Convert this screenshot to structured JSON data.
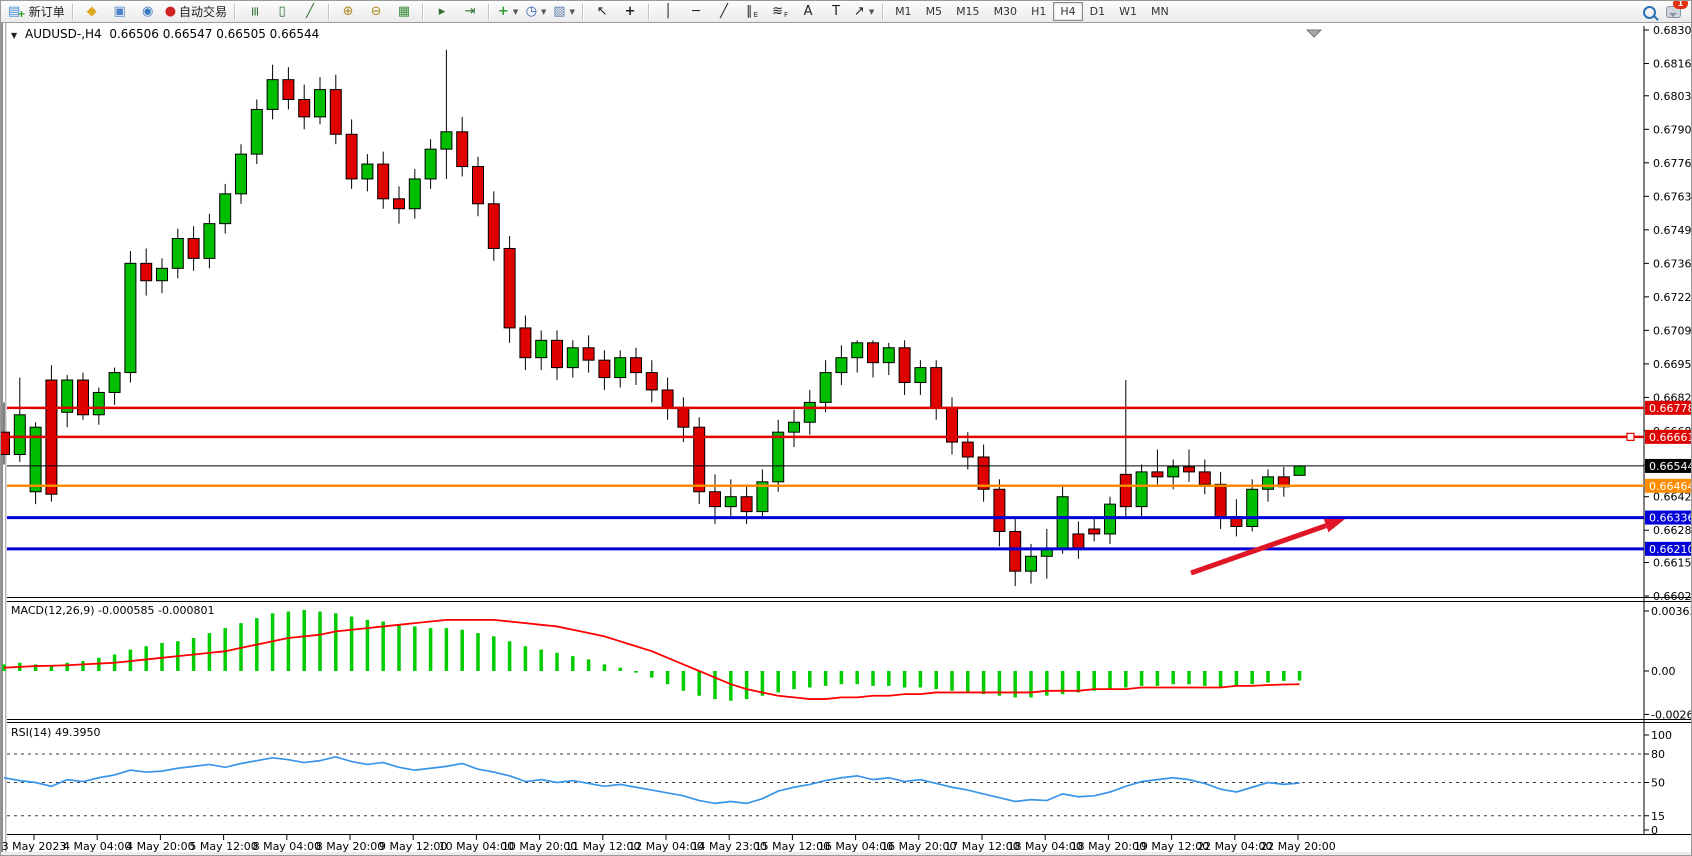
{
  "toolbar": {
    "groups": [
      [
        {
          "name": "new-order-button",
          "glyph": "▤",
          "color": "#3f8edb",
          "label": "新订单",
          "plus": true
        }
      ],
      [
        {
          "name": "metaeditor-button",
          "glyph": "◆",
          "color": "#e0a81f"
        },
        {
          "name": "community-button",
          "glyph": "▣",
          "color": "#4a7fc9"
        },
        {
          "name": "news-button",
          "glyph": "◉",
          "color": "#3a78c2"
        },
        {
          "name": "auto-trading-button",
          "glyph": "●",
          "color": "#cc2222",
          "label": "自动交易"
        }
      ],
      [
        {
          "name": "bar-chart-button",
          "glyph": "≡",
          "color": "#2f6f2f",
          "rot": true
        },
        {
          "name": "candlestick-chart-button",
          "glyph": "▯",
          "color": "#2f6f2f"
        },
        {
          "name": "line-chart-button",
          "glyph": "╱",
          "color": "#2f6f2f"
        }
      ],
      [
        {
          "name": "zoom-in-button",
          "glyph": "⊕",
          "color": "#b08a20"
        },
        {
          "name": "zoom-out-button",
          "glyph": "⊖",
          "color": "#b08a20"
        },
        {
          "name": "tile-windows-button",
          "glyph": "▦",
          "color": "#3a8f3a"
        }
      ],
      [
        {
          "name": "auto-scroll-button",
          "glyph": "▸",
          "color": "#2f6f2f"
        },
        {
          "name": "chart-shift-button",
          "glyph": "⇥",
          "color": "#2f6f2f"
        }
      ],
      [
        {
          "name": "add-indicator-button",
          "glyph": "+",
          "color": "#2f9e2f",
          "caret": true
        },
        {
          "name": "periods-button",
          "glyph": "◷",
          "color": "#2a5fae",
          "caret": true
        },
        {
          "name": "template-button",
          "glyph": "▨",
          "color": "#5a7fae",
          "caret": true
        }
      ],
      [
        {
          "name": "cursor-button",
          "glyph": "↖",
          "color": "#222"
        },
        {
          "name": "crosshair-button",
          "glyph": "+",
          "color": "#222"
        }
      ],
      [
        {
          "name": "vertical-line-button",
          "glyph": "│",
          "color": "#222"
        },
        {
          "name": "horizontal-line-button",
          "glyph": "─",
          "color": "#222"
        },
        {
          "name": "trendline-button",
          "glyph": "╱",
          "color": "#222"
        },
        {
          "name": "equidistant-channel-button",
          "glyph": "∥",
          "color": "#222",
          "sub": "E"
        },
        {
          "name": "fibonacci-button",
          "glyph": "≋",
          "color": "#222",
          "sub": "F"
        },
        {
          "name": "text-button",
          "glyph": "A",
          "color": "#222"
        },
        {
          "name": "text-label-button",
          "glyph": "T",
          "color": "#222"
        },
        {
          "name": "arrows-tool-button",
          "glyph": "↗",
          "color": "#222",
          "caret": true
        }
      ]
    ],
    "timeframes": {
      "options": [
        "M1",
        "M5",
        "M15",
        "M30",
        "H1",
        "H4",
        "D1",
        "W1",
        "MN"
      ],
      "active": "H4"
    },
    "right_icons": [
      {
        "name": "search-icon"
      },
      {
        "name": "chat-icon",
        "badge": "1"
      }
    ]
  },
  "chart": {
    "symbol_title": "AUDUSD-,H4",
    "ohlc": {
      "open": "0.66506",
      "high": "0.66547",
      "low": "0.66505",
      "close": "0.66544"
    },
    "price_axis": {
      "ticks": [
        "0.68300",
        "0.68165",
        "0.68035",
        "0.67900",
        "0.67765",
        "0.67630",
        "0.67495",
        "0.67360",
        "0.67225",
        "0.67090",
        "0.66955",
        "0.66820",
        "0.66685",
        "0.66550",
        "0.66420",
        "0.66285",
        "0.66155",
        "0.66020"
      ]
    },
    "lines": [
      {
        "name": "resistance-line-1",
        "value": 0.66778,
        "badge": "0.66778",
        "color": "#de0202",
        "width": 2.5
      },
      {
        "name": "resistance-line-2",
        "value": 0.66661,
        "badge": "0.66661",
        "color": "#de0202",
        "width": 2.5,
        "handle": true
      },
      {
        "name": "bid-price-line",
        "value": 0.66544,
        "badge": "0.66544",
        "color": "#000000",
        "width": 1
      },
      {
        "name": "support-line-orange",
        "value": 0.66464,
        "badge": "0.66464",
        "color": "#ff8c00",
        "width": 2.5
      },
      {
        "name": "support-line-blue-1",
        "value": 0.66336,
        "badge": "0.66336",
        "color": "#0202d8",
        "width": 3
      },
      {
        "name": "support-line-blue-2",
        "value": 0.6621,
        "badge": "0.66210",
        "color": "#0202d8",
        "width": 3
      }
    ],
    "arrow": {
      "name": "trend-arrow",
      "color": "#e01525",
      "tail": [
        1190,
        572
      ],
      "tip": [
        1344,
        518
      ]
    },
    "colors": {
      "up": "#00be00",
      "down": "#df0000",
      "wick": "#000000",
      "macd_hist": "#00cc00",
      "macd_signal": "#ff0000",
      "rsi_line": "#3a95e8"
    }
  },
  "macd": {
    "name": "MACD(12,26,9)",
    "main_value": "-0.000585",
    "signal_value": "-0.000801",
    "scale_labels": [
      "0.003635",
      "0.00",
      "-0.00263"
    ],
    "scale_values": [
      0.003635,
      0,
      -0.00263
    ]
  },
  "rsi": {
    "name": "RSI(14)",
    "value": "49.3950",
    "scale_labels": [
      "100",
      "80",
      "50",
      "15",
      "0"
    ],
    "scale_values": [
      100,
      80,
      50,
      15,
      0
    ],
    "dashed_levels": [
      80,
      50,
      15
    ]
  },
  "time_axis": {
    "labels": [
      "3 May 2023",
      "4 May 04:00",
      "4 May 20:00",
      "5 May 12:00",
      "8 May 04:00",
      "8 May 20:00",
      "9 May 12:00",
      "10 May 04:00",
      "10 May 20:00",
      "11 May 12:00",
      "12 May 04:00",
      "14 May 23:00",
      "15 May 12:00",
      "16 May 04:00",
      "16 May 20:00",
      "17 May 12:00",
      "18 May 04:00",
      "18 May 20:00",
      "19 May 12:00",
      "22 May 04:00",
      "22 May 20:00"
    ]
  },
  "chart_data": {
    "type": "candlestick",
    "symbol": "AUDUSD-",
    "period": "H4",
    "ylim": [
      0.6602,
      0.683
    ],
    "candles": [
      [
        0.6668,
        0.668,
        0.6655,
        0.6659
      ],
      [
        0.6659,
        0.669,
        0.6656,
        0.6675
      ],
      [
        0.6644,
        0.6672,
        0.6639,
        0.667
      ],
      [
        0.6689,
        0.6695,
        0.664,
        0.6643
      ],
      [
        0.6676,
        0.6691,
        0.667,
        0.6689
      ],
      [
        0.6689,
        0.6692,
        0.6673,
        0.6675
      ],
      [
        0.6675,
        0.6686,
        0.6671,
        0.6684
      ],
      [
        0.6684,
        0.6694,
        0.6679,
        0.6692
      ],
      [
        0.6692,
        0.6741,
        0.6688,
        0.6736
      ],
      [
        0.6736,
        0.6742,
        0.6723,
        0.6729
      ],
      [
        0.6729,
        0.6738,
        0.6724,
        0.6734
      ],
      [
        0.6734,
        0.675,
        0.673,
        0.6746
      ],
      [
        0.6746,
        0.6751,
        0.6733,
        0.6738
      ],
      [
        0.6738,
        0.6756,
        0.6734,
        0.6752
      ],
      [
        0.6752,
        0.6768,
        0.6748,
        0.6764
      ],
      [
        0.6764,
        0.6784,
        0.676,
        0.678
      ],
      [
        0.678,
        0.6802,
        0.6776,
        0.6798
      ],
      [
        0.6798,
        0.6816,
        0.6794,
        0.681
      ],
      [
        0.681,
        0.6815,
        0.6798,
        0.6802
      ],
      [
        0.6802,
        0.6808,
        0.679,
        0.6795
      ],
      [
        0.6795,
        0.6811,
        0.6792,
        0.6806
      ],
      [
        0.6806,
        0.6812,
        0.6784,
        0.6788
      ],
      [
        0.6788,
        0.6794,
        0.6766,
        0.677
      ],
      [
        0.677,
        0.678,
        0.6765,
        0.6776
      ],
      [
        0.6776,
        0.6781,
        0.6758,
        0.6762
      ],
      [
        0.6762,
        0.6767,
        0.6752,
        0.6758
      ],
      [
        0.6758,
        0.6774,
        0.6754,
        0.677
      ],
      [
        0.677,
        0.6786,
        0.6766,
        0.6782
      ],
      [
        0.6782,
        0.6822,
        0.677,
        0.6789
      ],
      [
        0.6789,
        0.6795,
        0.6771,
        0.6775
      ],
      [
        0.6775,
        0.6779,
        0.6755,
        0.676
      ],
      [
        0.676,
        0.6765,
        0.6737,
        0.6742
      ],
      [
        0.6742,
        0.6747,
        0.6704,
        0.671
      ],
      [
        0.671,
        0.6715,
        0.6693,
        0.6698
      ],
      [
        0.6698,
        0.6709,
        0.6693,
        0.6705
      ],
      [
        0.6705,
        0.6709,
        0.6689,
        0.6694
      ],
      [
        0.6694,
        0.6705,
        0.669,
        0.6702
      ],
      [
        0.6702,
        0.6707,
        0.6692,
        0.6697
      ],
      [
        0.6697,
        0.6701,
        0.6685,
        0.669
      ],
      [
        0.669,
        0.6701,
        0.6686,
        0.6698
      ],
      [
        0.6698,
        0.6702,
        0.6687,
        0.6692
      ],
      [
        0.6692,
        0.6697,
        0.668,
        0.6685
      ],
      [
        0.6685,
        0.669,
        0.6673,
        0.6678
      ],
      [
        0.6678,
        0.6682,
        0.6664,
        0.667
      ],
      [
        0.667,
        0.6674,
        0.6639,
        0.6644
      ],
      [
        0.6644,
        0.6651,
        0.6631,
        0.6638
      ],
      [
        0.6638,
        0.6649,
        0.6633,
        0.6642
      ],
      [
        0.6642,
        0.6646,
        0.6631,
        0.6636
      ],
      [
        0.6636,
        0.6653,
        0.6633,
        0.6648
      ],
      [
        0.6648,
        0.6673,
        0.6644,
        0.6668
      ],
      [
        0.6668,
        0.6677,
        0.6662,
        0.6672
      ],
      [
        0.6672,
        0.6685,
        0.6667,
        0.668
      ],
      [
        0.668,
        0.6697,
        0.6676,
        0.6692
      ],
      [
        0.6692,
        0.6703,
        0.6687,
        0.6698
      ],
      [
        0.6698,
        0.6705,
        0.6692,
        0.6704
      ],
      [
        0.6704,
        0.6705,
        0.669,
        0.6696
      ],
      [
        0.6696,
        0.6704,
        0.6691,
        0.6702
      ],
      [
        0.6702,
        0.6705,
        0.6683,
        0.6688
      ],
      [
        0.6688,
        0.6697,
        0.6683,
        0.6694
      ],
      [
        0.6694,
        0.6697,
        0.6673,
        0.6678
      ],
      [
        0.6678,
        0.6682,
        0.6659,
        0.6664
      ],
      [
        0.6664,
        0.6668,
        0.6653,
        0.6658
      ],
      [
        0.6658,
        0.6663,
        0.664,
        0.6645
      ],
      [
        0.6645,
        0.6649,
        0.6622,
        0.6628
      ],
      [
        0.6628,
        0.6633,
        0.6606,
        0.6612
      ],
      [
        0.6612,
        0.6623,
        0.6607,
        0.6618
      ],
      [
        0.6618,
        0.6629,
        0.6609,
        0.6621
      ],
      [
        0.6621,
        0.6646,
        0.6619,
        0.6642
      ],
      [
        0.6627,
        0.6632,
        0.6617,
        0.6621
      ],
      [
        0.6629,
        0.6634,
        0.6624,
        0.6627
      ],
      [
        0.6627,
        0.6642,
        0.6623,
        0.6639
      ],
      [
        0.6651,
        0.6689,
        0.6634,
        0.6638
      ],
      [
        0.6638,
        0.6655,
        0.6633,
        0.6652
      ],
      [
        0.6652,
        0.6661,
        0.6647,
        0.665
      ],
      [
        0.665,
        0.6657,
        0.6645,
        0.6654
      ],
      [
        0.6654,
        0.6661,
        0.6648,
        0.6652
      ],
      [
        0.6652,
        0.6657,
        0.6643,
        0.6647
      ],
      [
        0.6647,
        0.6652,
        0.6629,
        0.6634
      ],
      [
        0.6634,
        0.6641,
        0.6626,
        0.663
      ],
      [
        0.663,
        0.6649,
        0.6628,
        0.6645
      ],
      [
        0.6645,
        0.6653,
        0.664,
        0.665
      ],
      [
        0.665,
        0.6654,
        0.6642,
        0.6646
      ],
      [
        0.66506,
        0.66547,
        0.66505,
        0.66544
      ]
    ],
    "macd_hist": [
      0.0004,
      0.0005,
      0.0004,
      0.0003,
      0.0005,
      0.0006,
      0.0008,
      0.001,
      0.0013,
      0.0015,
      0.0017,
      0.0018,
      0.002,
      0.0023,
      0.0026,
      0.0029,
      0.0032,
      0.0035,
      0.0036,
      0.0037,
      0.0036,
      0.0035,
      0.0033,
      0.0031,
      0.003,
      0.0028,
      0.0027,
      0.0026,
      0.0026,
      0.0025,
      0.0023,
      0.0021,
      0.0018,
      0.0015,
      0.0013,
      0.0011,
      0.0009,
      0.0007,
      0.0004,
      0.0002,
      -0.0001,
      -0.0004,
      -0.0008,
      -0.0012,
      -0.0015,
      -0.0017,
      -0.0018,
      -0.0017,
      -0.0015,
      -0.0013,
      -0.0011,
      -0.001,
      -0.0009,
      -0.0008,
      -0.0008,
      -0.0009,
      -0.0009,
      -0.001,
      -0.001,
      -0.0011,
      -0.0012,
      -0.0013,
      -0.0014,
      -0.0015,
      -0.0016,
      -0.0016,
      -0.0015,
      -0.0014,
      -0.0013,
      -0.0012,
      -0.0011,
      -0.001,
      -0.0009,
      -0.0009,
      -0.0008,
      -0.0008,
      -0.0009,
      -0.001,
      -0.0009,
      -0.0008,
      -0.0007,
      -0.0006,
      -0.000585
    ],
    "macd_signal": [
      0.0002,
      0.00025,
      0.0003,
      0.00032,
      0.00035,
      0.0004,
      0.00045,
      0.0005,
      0.0006,
      0.0007,
      0.0008,
      0.0009,
      0.001,
      0.0011,
      0.0012,
      0.0014,
      0.0016,
      0.0018,
      0.002,
      0.0021,
      0.0022,
      0.0024,
      0.0025,
      0.0026,
      0.0027,
      0.0028,
      0.0029,
      0.003,
      0.0031,
      0.0031,
      0.0031,
      0.0031,
      0.003,
      0.0029,
      0.0028,
      0.0027,
      0.0025,
      0.0023,
      0.0021,
      0.0018,
      0.0015,
      0.0012,
      0.0008,
      0.0004,
      0.0,
      -0.0004,
      -0.0008,
      -0.0011,
      -0.0013,
      -0.0015,
      -0.0016,
      -0.0017,
      -0.0017,
      -0.0016,
      -0.0016,
      -0.0015,
      -0.0015,
      -0.0014,
      -0.0014,
      -0.0013,
      -0.0013,
      -0.0013,
      -0.0013,
      -0.0013,
      -0.0013,
      -0.0013,
      -0.0012,
      -0.0012,
      -0.0012,
      -0.0011,
      -0.0011,
      -0.0011,
      -0.001,
      -0.001,
      -0.001,
      -0.001,
      -0.001,
      -0.001,
      -0.0009,
      -0.0009,
      -0.00085,
      -0.00082,
      -0.000801
    ],
    "rsi_series": [
      55,
      52,
      50,
      46,
      53,
      51,
      55,
      58,
      63,
      61,
      62,
      65,
      67,
      69,
      66,
      70,
      73,
      76,
      74,
      71,
      73,
      77,
      72,
      69,
      71,
      66,
      63,
      65,
      67,
      70,
      64,
      61,
      57,
      51,
      53,
      50,
      52,
      49,
      46,
      48,
      45,
      42,
      39,
      36,
      31,
      28,
      30,
      28,
      33,
      41,
      45,
      48,
      52,
      55,
      57,
      53,
      55,
      51,
      53,
      49,
      45,
      42,
      38,
      34,
      30,
      32,
      31,
      38,
      35,
      36,
      40,
      46,
      51,
      53,
      55,
      53,
      49,
      43,
      40,
      45,
      50,
      48,
      49.4
    ]
  }
}
